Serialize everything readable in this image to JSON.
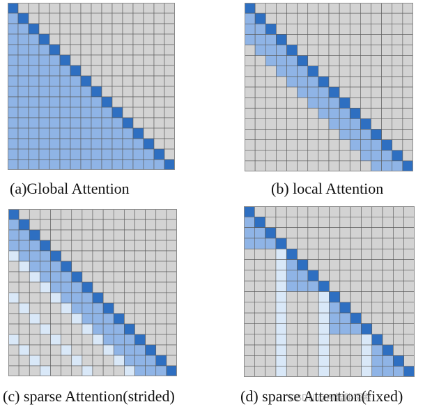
{
  "colors": {
    "diagonal": "#2e6fc1",
    "attended": "#8fb4e6",
    "light": "#d9e8f8",
    "empty": "#d3d3d3",
    "grid_line": "#5a5a5a",
    "border": "#8a8a8a"
  },
  "panels": [
    {
      "id": "a",
      "caption": "(a)Global Attention",
      "size": 16,
      "pattern": "global"
    },
    {
      "id": "b",
      "caption": "(b) local Attention",
      "size": 16,
      "pattern": "local",
      "window": 3
    },
    {
      "id": "c",
      "caption": "(c) sparse Attention(strided)",
      "size": 16,
      "pattern": "strided",
      "window": 3,
      "stride": 4
    },
    {
      "id": "d",
      "caption": "(d) sparse Attention(fixed)",
      "size": 16,
      "pattern": "fixed",
      "block": 4
    }
  ],
  "watermark": "CSDN @AI智能探索"
}
